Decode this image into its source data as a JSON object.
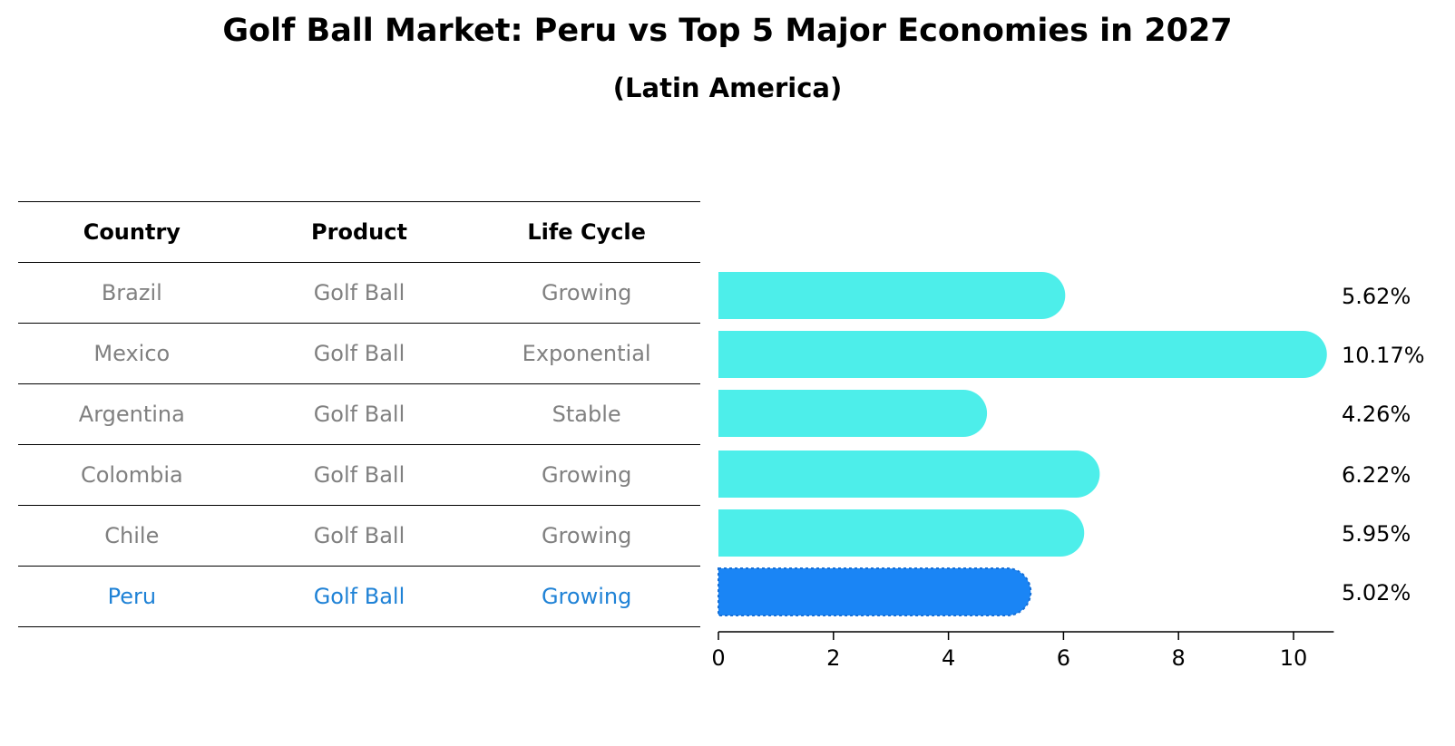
{
  "title": "Golf Ball Market: Peru vs Top 5 Major Economies in 2027",
  "subtitle": "(Latin America)",
  "table": {
    "headers": [
      "Country",
      "Product",
      "Life Cycle"
    ],
    "rows": [
      {
        "country": "Brazil",
        "product": "Golf Ball",
        "life_cycle": "Growing"
      },
      {
        "country": "Mexico",
        "product": "Golf Ball",
        "life_cycle": "Exponential"
      },
      {
        "country": "Argentina",
        "product": "Golf Ball",
        "life_cycle": "Stable"
      },
      {
        "country": "Colombia",
        "product": "Golf Ball",
        "life_cycle": "Growing"
      },
      {
        "country": "Chile",
        "product": "Golf Ball",
        "life_cycle": "Growing"
      },
      {
        "country": "Peru",
        "product": "Golf Ball",
        "life_cycle": "Growing"
      }
    ]
  },
  "colors": {
    "bar": "#4deeea",
    "highlight_bar": "#1a85f5",
    "highlight_text": "#1f82d6",
    "muted_text": "#808080"
  },
  "chart_data": {
    "type": "bar",
    "orientation": "horizontal",
    "categories": [
      "Brazil",
      "Mexico",
      "Argentina",
      "Colombia",
      "Chile",
      "Peru"
    ],
    "values": [
      5.62,
      10.17,
      4.26,
      6.22,
      5.95,
      5.02
    ],
    "value_labels": [
      "5.62%",
      "10.17%",
      "4.26%",
      "6.22%",
      "5.95%",
      "5.02%"
    ],
    "highlight": "Peru",
    "xlim": [
      0,
      10.7
    ],
    "xticks": [
      0,
      2,
      4,
      6,
      8,
      10
    ],
    "xlabel": "",
    "ylabel": "",
    "grid": false
  }
}
